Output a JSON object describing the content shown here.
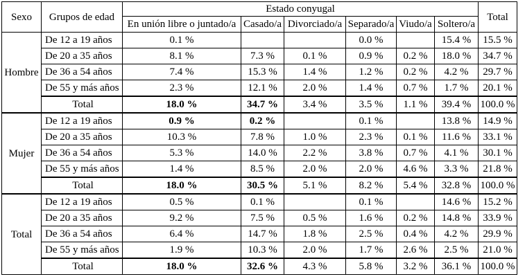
{
  "header": {
    "sexo": "Sexo",
    "grupos": "Grupos de edad",
    "estado": "Estado conyugal",
    "total": "Total",
    "columns": [
      "En unión libre o juntado/a",
      "Casado/a",
      "Divorciado/a",
      "Separado/a",
      "Viudo/a",
      "Soltero/a"
    ]
  },
  "groups": [
    {
      "sexo": "Hombre",
      "rows": [
        {
          "label": "De 12 a 19 años",
          "values": [
            "0.1 %",
            "",
            "",
            "0.0 %",
            "",
            "15.4 %"
          ],
          "total": "15.5 %"
        },
        {
          "label": "De 20 a 35 años",
          "values": [
            "8.1 %",
            "7.3 %",
            "0.1 %",
            "0.9 %",
            "0.2 %",
            "18.0 %"
          ],
          "total": "34.7 %"
        },
        {
          "label": "De 36 a 54 años",
          "values": [
            "7.4 %",
            "15.3 %",
            "1.4 %",
            "1.2 %",
            "0.2 %",
            "4.2 %"
          ],
          "total": "29.7 %"
        },
        {
          "label": "De 55 y más años",
          "values": [
            "2.3 %",
            "12.1 %",
            "2.0 %",
            "1.4 %",
            "0.7 %",
            "1.7 %"
          ],
          "total": "20.1 %"
        }
      ],
      "total_row": {
        "label": "Total",
        "values": [
          "18.0 %",
          "34.7 %",
          "3.4 %",
          "3.5 %",
          "1.1 %",
          "39.4 %"
        ],
        "total": "100.0 %"
      }
    },
    {
      "sexo": "Mujer",
      "rows": [
        {
          "label": "De 12 a 19 años",
          "values": [
            "0.9 %",
            "0.2 %",
            "",
            "0.1 %",
            "",
            "13.8 %"
          ],
          "total": "14.9 %"
        },
        {
          "label": "De 20 a 35 años",
          "values": [
            "10.3 %",
            "7.8 %",
            "1.0 %",
            "2.3 %",
            "0.1 %",
            "11.6 %"
          ],
          "total": "33.1 %"
        },
        {
          "label": "De 36 a 54 años",
          "values": [
            "5.3 %",
            "14.0 %",
            "2.2 %",
            "3.8 %",
            "0.7 %",
            "4.1 %"
          ],
          "total": "30.1 %"
        },
        {
          "label": "De 55 y más años",
          "values": [
            "1.4 %",
            "8.5 %",
            "2.0 %",
            "2.0 %",
            "4.6 %",
            "3.3 %"
          ],
          "total": "21.8 %"
        }
      ],
      "total_row": {
        "label": "Total",
        "values": [
          "18.0 %",
          "30.5 %",
          "5.1 %",
          "8.2 %",
          "5.4 %",
          "32.8 %"
        ],
        "total": "100.0 %"
      }
    },
    {
      "sexo": "Total",
      "rows": [
        {
          "label": "De 12 a 19 años",
          "values": [
            "0.5 %",
            "0.1 %",
            "",
            "0.1 %",
            "",
            "14.6 %"
          ],
          "total": "15.2 %"
        },
        {
          "label": "De 20 a 35 años",
          "values": [
            "9.2 %",
            "7.5 %",
            "0.5 %",
            "1.6 %",
            "0.2 %",
            "14.8 %"
          ],
          "total": "33.9 %"
        },
        {
          "label": "De 36 a 54 años",
          "values": [
            "6.4 %",
            "14.7 %",
            "1.8 %",
            "2.5 %",
            "0.4 %",
            "4.2 %"
          ],
          "total": "29.9 %"
        },
        {
          "label": "De 55 y más años",
          "values": [
            "1.9 %",
            "10.3 %",
            "2.0 %",
            "1.7 %",
            "2.6 %",
            "2.5 %"
          ],
          "total": "21.0 %"
        }
      ],
      "total_row": {
        "label": "Total",
        "values": [
          "18.0 %",
          "32.6 %",
          "4.3 %",
          "5.8 %",
          "3.2 %",
          "36.1 %"
        ],
        "total": "100.0 %"
      }
    }
  ]
}
